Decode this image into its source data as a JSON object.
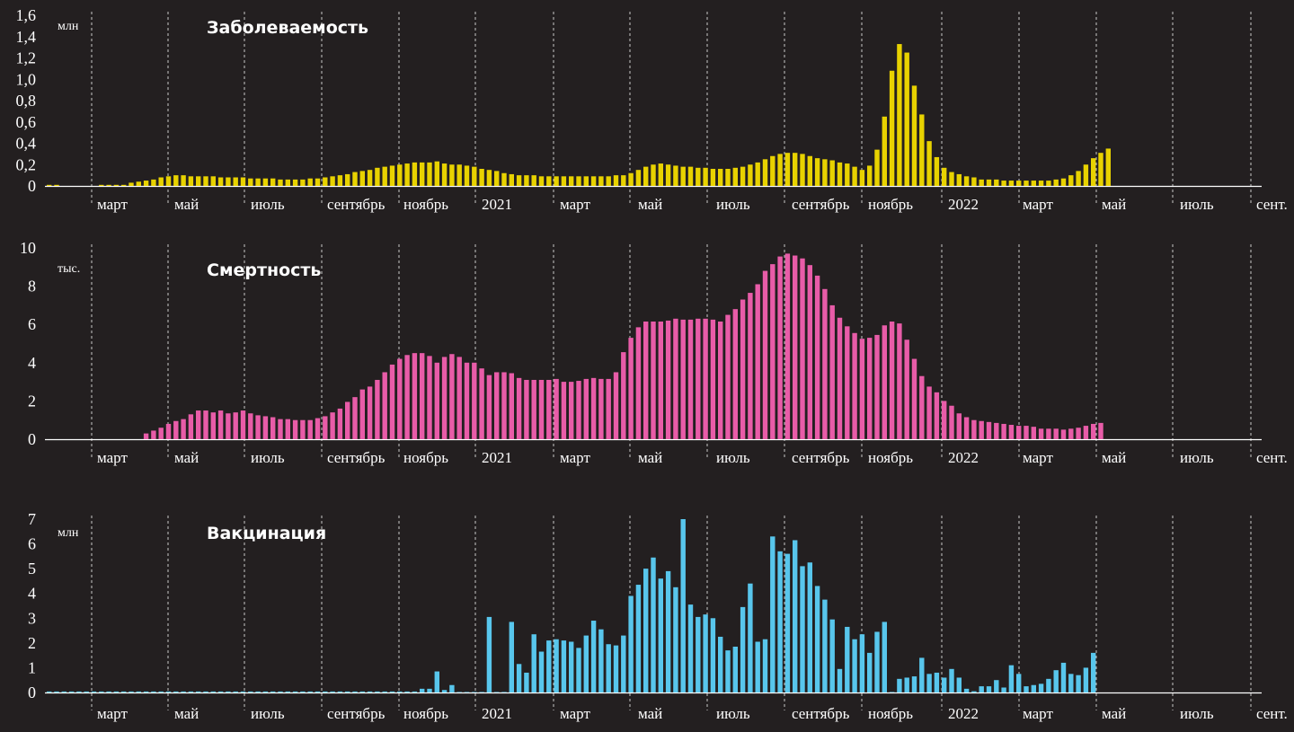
{
  "background": "#231f20",
  "month_labels": [
    "март",
    "май",
    "июль",
    "сентябрь",
    "ноябрь",
    "2021",
    "март",
    "май",
    "июль",
    "сентябрь",
    "ноябрь",
    "2022",
    "март",
    "май",
    "июль",
    "сент."
  ],
  "chart_data": [
    {
      "type": "bar",
      "title": "Заболеваемость",
      "unit": "млн",
      "color": "#e8d200",
      "yticks": [
        "0",
        "0,2",
        "0,4",
        "0,6",
        "0,8",
        "1,0",
        "1,2",
        "1,4",
        "1,6"
      ],
      "ylim": [
        0,
        1.6
      ],
      "values": [
        0.01,
        0.01,
        0,
        0,
        0,
        0,
        0,
        0.01,
        0.01,
        0.01,
        0.01,
        0.03,
        0.04,
        0.05,
        0.06,
        0.08,
        0.09,
        0.1,
        0.1,
        0.09,
        0.09,
        0.09,
        0.09,
        0.08,
        0.08,
        0.08,
        0.08,
        0.07,
        0.07,
        0.07,
        0.07,
        0.06,
        0.06,
        0.06,
        0.06,
        0.07,
        0.07,
        0.08,
        0.09,
        0.1,
        0.11,
        0.13,
        0.14,
        0.15,
        0.17,
        0.18,
        0.19,
        0.2,
        0.21,
        0.22,
        0.22,
        0.22,
        0.23,
        0.21,
        0.2,
        0.2,
        0.19,
        0.18,
        0.16,
        0.15,
        0.14,
        0.12,
        0.11,
        0.1,
        0.1,
        0.1,
        0.09,
        0.09,
        0.09,
        0.09,
        0.09,
        0.09,
        0.09,
        0.09,
        0.09,
        0.09,
        0.1,
        0.1,
        0.12,
        0.15,
        0.18,
        0.2,
        0.21,
        0.2,
        0.19,
        0.18,
        0.18,
        0.17,
        0.17,
        0.16,
        0.16,
        0.16,
        0.17,
        0.18,
        0.2,
        0.22,
        0.25,
        0.28,
        0.3,
        0.31,
        0.31,
        0.3,
        0.28,
        0.26,
        0.25,
        0.24,
        0.22,
        0.21,
        0.18,
        0.15,
        0.19,
        0.34,
        0.65,
        1.08,
        1.33,
        1.25,
        0.94,
        0.67,
        0.42,
        0.27,
        0.17,
        0.13,
        0.11,
        0.09,
        0.08,
        0.06,
        0.06,
        0.06,
        0.05,
        0.05,
        0.05,
        0.05,
        0.05,
        0.05,
        0.05,
        0.06,
        0.07,
        0.1,
        0.14,
        0.2,
        0.26,
        0.31,
        0.35
      ]
    },
    {
      "type": "bar",
      "title": "Смертность",
      "unit": "тыс.",
      "color": "#e85ca8",
      "yticks": [
        "0",
        "2",
        "4",
        "6",
        "8",
        "10"
      ],
      "ylim": [
        0,
        10
      ],
      "values": [
        0,
        0,
        0,
        0,
        0,
        0,
        0,
        0,
        0,
        0,
        0,
        0,
        0,
        0.3,
        0.45,
        0.6,
        0.8,
        0.95,
        1.05,
        1.3,
        1.5,
        1.5,
        1.4,
        1.5,
        1.35,
        1.4,
        1.5,
        1.35,
        1.25,
        1.2,
        1.15,
        1.05,
        1.05,
        1.0,
        1.0,
        1.0,
        1.1,
        1.2,
        1.4,
        1.6,
        1.95,
        2.2,
        2.6,
        2.75,
        3.1,
        3.5,
        3.9,
        4.2,
        4.4,
        4.5,
        4.5,
        4.35,
        4.0,
        4.3,
        4.45,
        4.3,
        4.0,
        4.0,
        3.7,
        3.35,
        3.5,
        3.5,
        3.45,
        3.2,
        3.1,
        3.1,
        3.1,
        3.1,
        3.15,
        3.0,
        3.0,
        3.05,
        3.15,
        3.2,
        3.15,
        3.15,
        3.5,
        4.55,
        5.3,
        5.85,
        6.15,
        6.15,
        6.15,
        6.2,
        6.3,
        6.25,
        6.25,
        6.3,
        6.3,
        6.25,
        6.15,
        6.5,
        6.8,
        7.3,
        7.65,
        8.1,
        8.8,
        9.15,
        9.55,
        9.7,
        9.6,
        9.45,
        9.1,
        8.55,
        7.85,
        7.0,
        6.35,
        5.9,
        5.55,
        5.25,
        5.3,
        5.45,
        5.95,
        6.15,
        6.05,
        5.2,
        4.2,
        3.3,
        2.75,
        2.45,
        2.0,
        1.75,
        1.35,
        1.15,
        1.0,
        0.95,
        0.9,
        0.85,
        0.8,
        0.75,
        0.7,
        0.7,
        0.65,
        0.55,
        0.55,
        0.55,
        0.5,
        0.55,
        0.6,
        0.7,
        0.8,
        0.85
      ]
    },
    {
      "type": "bar",
      "title": "Вакцинация",
      "unit": "млн",
      "color": "#58c6ec",
      "yticks": [
        "0",
        "1",
        "2",
        "3",
        "4",
        "5",
        "6",
        "7"
      ],
      "ylim": [
        0,
        7
      ],
      "values": [
        0.04,
        0.04,
        0.04,
        0.04,
        0.04,
        0.04,
        0.04,
        0.04,
        0.04,
        0.04,
        0.04,
        0.04,
        0.04,
        0.04,
        0.04,
        0.04,
        0.04,
        0.04,
        0.04,
        0.04,
        0.04,
        0.04,
        0.04,
        0.04,
        0.04,
        0.04,
        0.04,
        0.04,
        0.04,
        0.04,
        0.04,
        0.04,
        0.04,
        0.04,
        0.04,
        0.04,
        0.04,
        0.04,
        0.04,
        0.04,
        0.04,
        0.04,
        0.04,
        0.04,
        0.04,
        0.04,
        0.04,
        0.04,
        0.04,
        0.04,
        0.15,
        0.15,
        0.85,
        0.1,
        0.3,
        0.02,
        0.02,
        0.02,
        0.02,
        3.05,
        0.02,
        0.02,
        2.85,
        1.15,
        0.8,
        2.35,
        1.65,
        2.1,
        2.15,
        2.1,
        2.05,
        1.8,
        2.3,
        2.9,
        2.55,
        1.95,
        1.9,
        2.3,
        3.9,
        4.35,
        5.0,
        5.45,
        4.6,
        4.9,
        4.25,
        7.0,
        3.55,
        3.05,
        3.15,
        3.0,
        2.25,
        1.7,
        1.85,
        3.45,
        4.4,
        2.05,
        2.15,
        6.3,
        5.7,
        5.6,
        6.15,
        5.1,
        5.25,
        4.3,
        3.75,
        2.95,
        0.95,
        2.65,
        2.15,
        2.35,
        1.6,
        2.45,
        2.85,
        0.02,
        0.55,
        0.6,
        0.65,
        1.4,
        0.75,
        0.8,
        0.6,
        0.95,
        0.6,
        0.15,
        0.05,
        0.25,
        0.25,
        0.5,
        0.2,
        1.1,
        0.75,
        0.25,
        0.3,
        0.35,
        0.55,
        0.9,
        1.2,
        0.75,
        0.7,
        1.0,
        1.6
      ]
    }
  ]
}
